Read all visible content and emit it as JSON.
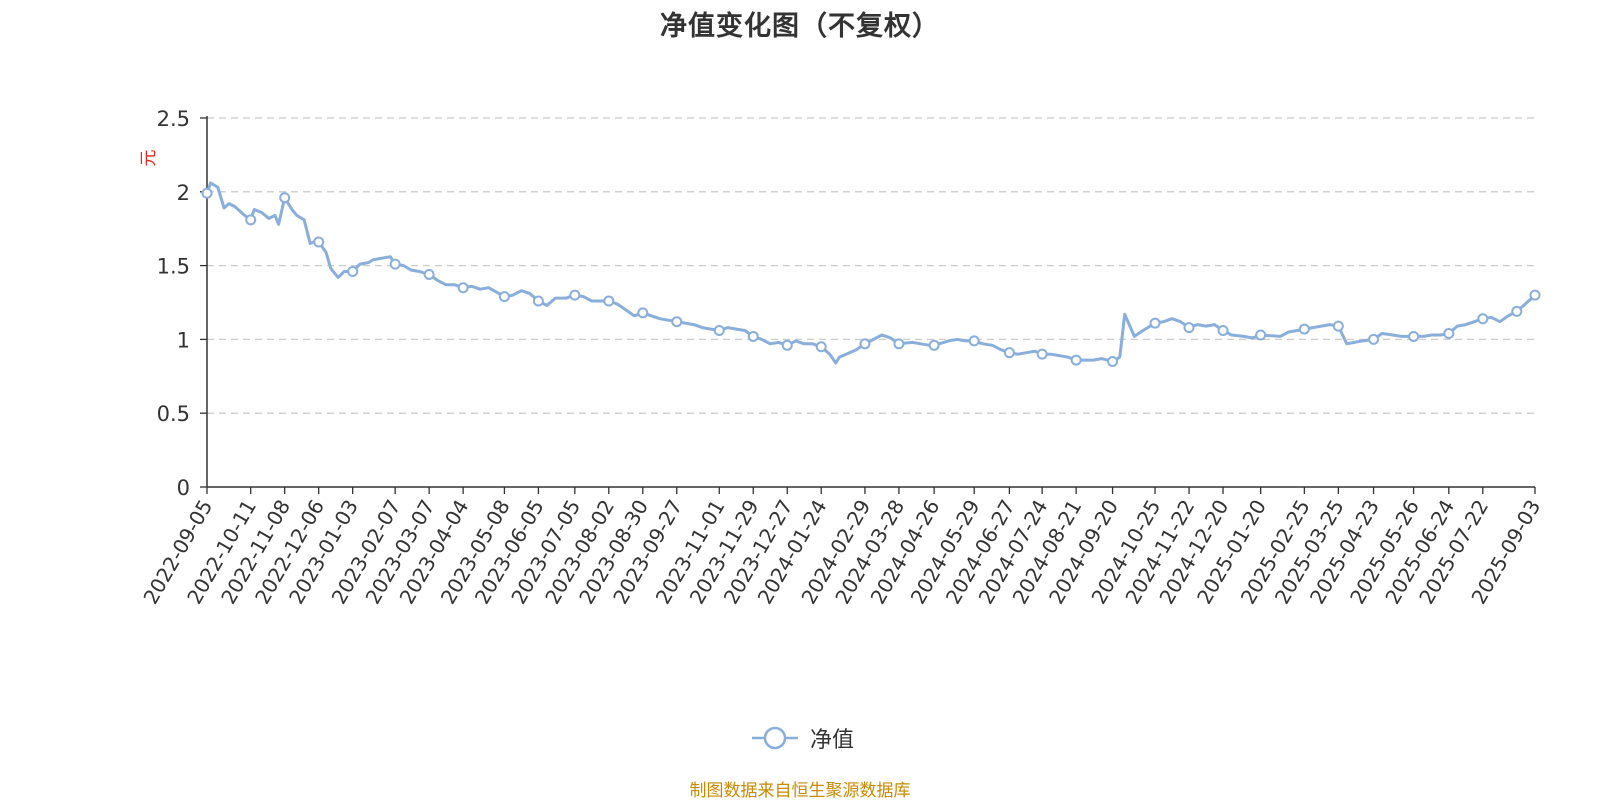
{
  "colors": {
    "series": "#8aaedc",
    "ylabel": "#e8261b",
    "source": "#c98a00",
    "grid": "#cccccc",
    "axis": "#333333"
  },
  "legend": {
    "icon": "line-circle-icon",
    "position": "bottom-center"
  },
  "source_note": "制图数据来自恒生聚源数据库",
  "chart_data": {
    "type": "line",
    "title": "净值变化图（不复权）",
    "ylabel": "元",
    "xlabel": "",
    "ylim": [
      0,
      2.5
    ],
    "yticks": [
      "0",
      "0.5",
      "1",
      "1.5",
      "2",
      "2.5"
    ],
    "grid": true,
    "xticks": [
      "2022-09-05",
      "2022-10-11",
      "2022-11-08",
      "2022-12-06",
      "2023-01-03",
      "2023-02-07",
      "2023-03-07",
      "2023-04-04",
      "2023-05-08",
      "2023-06-05",
      "2023-07-05",
      "2023-08-02",
      "2023-08-30",
      "2023-09-27",
      "2023-11-01",
      "2023-11-29",
      "2023-12-27",
      "2024-01-24",
      "2024-02-29",
      "2024-03-28",
      "2024-04-26",
      "2024-05-29",
      "2024-06-27",
      "2024-07-24",
      "2024-08-21",
      "2024-09-20",
      "2024-10-25",
      "2024-11-22",
      "2024-12-20",
      "2025-01-20",
      "2025-02-25",
      "2025-03-25",
      "2025-04-23",
      "2025-05-26",
      "2025-06-24",
      "2025-07-22",
      "2025-09-03"
    ],
    "series": [
      {
        "name": "净值",
        "x": [
          "2022-09-05",
          "2022-09-08",
          "2022-09-14",
          "2022-09-19",
          "2022-09-23",
          "2022-09-28",
          "2022-10-06",
          "2022-10-11",
          "2022-10-14",
          "2022-10-20",
          "2022-10-26",
          "2022-10-31",
          "2022-11-03",
          "2022-11-08",
          "2022-11-14",
          "2022-11-18",
          "2022-11-24",
          "2022-11-29",
          "2022-12-02",
          "2022-12-06",
          "2022-12-12",
          "2022-12-16",
          "2022-12-22",
          "2022-12-27",
          "2023-01-03",
          "2023-01-09",
          "2023-01-16",
          "2023-01-20",
          "2023-02-03",
          "2023-02-07",
          "2023-02-14",
          "2023-02-20",
          "2023-02-27",
          "2023-03-07",
          "2023-03-14",
          "2023-03-21",
          "2023-03-28",
          "2023-04-04",
          "2023-04-11",
          "2023-04-18",
          "2023-04-25",
          "2023-05-08",
          "2023-05-15",
          "2023-05-22",
          "2023-05-29",
          "2023-06-05",
          "2023-06-12",
          "2023-06-19",
          "2023-06-28",
          "2023-07-05",
          "2023-07-12",
          "2023-07-19",
          "2023-07-26",
          "2023-08-02",
          "2023-08-09",
          "2023-08-16",
          "2023-08-23",
          "2023-08-30",
          "2023-09-06",
          "2023-09-13",
          "2023-09-20",
          "2023-09-27",
          "2023-10-11",
          "2023-10-18",
          "2023-10-25",
          "2023-11-01",
          "2023-11-08",
          "2023-11-15",
          "2023-11-22",
          "2023-11-29",
          "2023-12-06",
          "2023-12-13",
          "2023-12-20",
          "2023-12-27",
          "2024-01-03",
          "2024-01-10",
          "2024-01-17",
          "2024-01-24",
          "2024-01-31",
          "2024-02-05",
          "2024-02-08",
          "2024-02-22",
          "2024-02-29",
          "2024-03-07",
          "2024-03-14",
          "2024-03-21",
          "2024-03-28",
          "2024-04-08",
          "2024-04-15",
          "2024-04-22",
          "2024-04-26",
          "2024-05-08",
          "2024-05-15",
          "2024-05-22",
          "2024-05-29",
          "2024-06-05",
          "2024-06-13",
          "2024-06-20",
          "2024-06-27",
          "2024-07-04",
          "2024-07-11",
          "2024-07-18",
          "2024-07-24",
          "2024-07-31",
          "2024-08-07",
          "2024-08-14",
          "2024-08-21",
          "2024-08-28",
          "2024-09-04",
          "2024-09-11",
          "2024-09-20",
          "2024-09-26",
          "2024-09-30",
          "2024-10-08",
          "2024-10-15",
          "2024-10-25",
          "2024-11-01",
          "2024-11-08",
          "2024-11-15",
          "2024-11-22",
          "2024-11-29",
          "2024-12-06",
          "2024-12-13",
          "2024-12-20",
          "2024-12-27",
          "2025-01-06",
          "2025-01-13",
          "2025-01-20",
          "2025-02-05",
          "2025-02-12",
          "2025-02-19",
          "2025-02-25",
          "2025-03-04",
          "2025-03-11",
          "2025-03-18",
          "2025-03-25",
          "2025-04-01",
          "2025-04-07",
          "2025-04-14",
          "2025-04-23",
          "2025-04-30",
          "2025-05-09",
          "2025-05-16",
          "2025-05-26",
          "2025-06-03",
          "2025-06-10",
          "2025-06-17",
          "2025-06-24",
          "2025-07-01",
          "2025-07-08",
          "2025-07-15",
          "2025-07-22",
          "2025-07-29",
          "2025-08-05",
          "2025-08-12",
          "2025-08-19",
          "2025-08-26",
          "2025-09-03"
        ],
        "y": [
          1.99,
          2.06,
          2.03,
          1.89,
          1.92,
          1.9,
          1.84,
          1.81,
          1.88,
          1.86,
          1.82,
          1.84,
          1.78,
          1.96,
          1.88,
          1.84,
          1.81,
          1.65,
          1.66,
          1.66,
          1.59,
          1.48,
          1.42,
          1.46,
          1.46,
          1.51,
          1.52,
          1.54,
          1.56,
          1.51,
          1.5,
          1.47,
          1.46,
          1.44,
          1.4,
          1.37,
          1.37,
          1.35,
          1.36,
          1.34,
          1.35,
          1.29,
          1.3,
          1.33,
          1.31,
          1.26,
          1.23,
          1.28,
          1.28,
          1.3,
          1.29,
          1.26,
          1.26,
          1.26,
          1.24,
          1.2,
          1.16,
          1.18,
          1.16,
          1.14,
          1.13,
          1.12,
          1.1,
          1.08,
          1.07,
          1.06,
          1.08,
          1.07,
          1.06,
          1.02,
          1.0,
          0.97,
          0.98,
          0.96,
          0.99,
          0.97,
          0.97,
          0.95,
          0.9,
          0.84,
          0.88,
          0.93,
          0.97,
          1.0,
          1.03,
          1.01,
          0.97,
          0.98,
          0.97,
          0.96,
          0.96,
          0.99,
          1.0,
          0.99,
          0.99,
          0.97,
          0.96,
          0.93,
          0.91,
          0.9,
          0.91,
          0.92,
          0.9,
          0.9,
          0.89,
          0.88,
          0.86,
          0.86,
          0.86,
          0.87,
          0.85,
          0.88,
          1.17,
          1.02,
          1.06,
          1.11,
          1.12,
          1.14,
          1.12,
          1.08,
          1.1,
          1.09,
          1.1,
          1.06,
          1.03,
          1.02,
          1.01,
          1.03,
          1.02,
          1.05,
          1.06,
          1.07,
          1.08,
          1.09,
          1.1,
          1.09,
          0.97,
          0.98,
          0.99,
          1.0,
          1.04,
          1.03,
          1.02,
          1.02,
          1.02,
          1.03,
          1.03,
          1.04,
          1.09,
          1.1,
          1.12,
          1.14,
          1.15,
          1.12,
          1.16,
          1.19,
          1.24,
          1.3
        ]
      }
    ],
    "markers_at": [
      "2022-09-05",
      "2022-10-11",
      "2022-11-08",
      "2022-12-06",
      "2023-01-03",
      "2023-02-07",
      "2023-03-07",
      "2023-04-04",
      "2023-05-08",
      "2023-06-05",
      "2023-07-05",
      "2023-08-02",
      "2023-08-30",
      "2023-09-27",
      "2023-11-01",
      "2023-11-29",
      "2023-12-27",
      "2024-01-24",
      "2024-02-29",
      "2024-03-28",
      "2024-04-26",
      "2024-05-29",
      "2024-06-27",
      "2024-07-24",
      "2024-08-21",
      "2024-09-20",
      "2024-10-25",
      "2024-11-22",
      "2024-12-20",
      "2025-01-20",
      "2025-02-25",
      "2025-03-25",
      "2025-04-23",
      "2025-05-26",
      "2025-06-24",
      "2025-07-22",
      "2025-08-19",
      "2025-09-03"
    ]
  }
}
